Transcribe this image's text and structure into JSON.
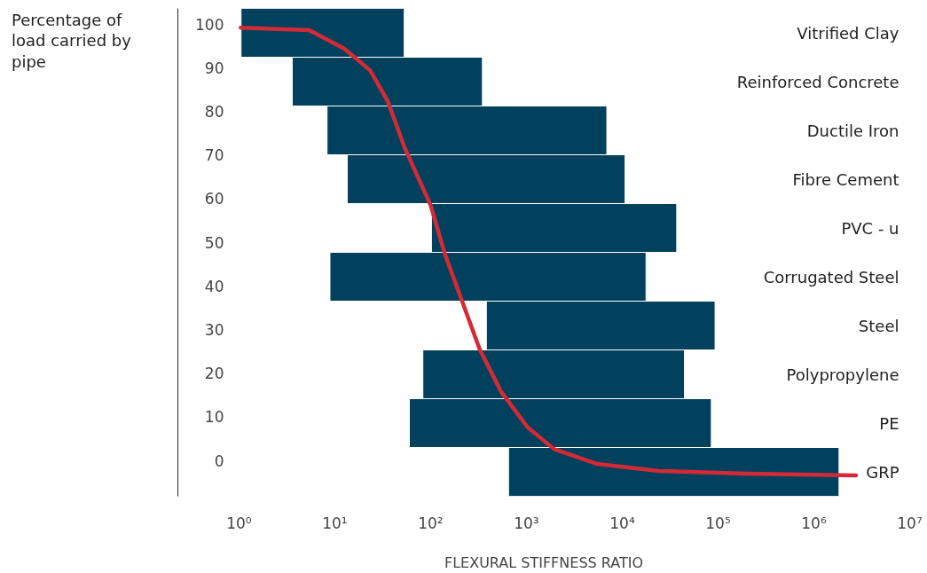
{
  "chart_data": [
    {
      "type": "bar",
      "orientation": "horizontal",
      "log": "x",
      "categories": [
        "Vitrified Clay",
        "Reinforced Concrete",
        "Ductile Iron",
        "Fibre Cement",
        "PVC - u",
        "Corrugated Steel",
        "Steel",
        "Polypropylene",
        "PE",
        "GRP"
      ],
      "xlabel": "FLEXURAL STIFFNESS RATIO",
      "color": "#02415e",
      "xlim": [
        0.23,
        10000000
      ],
      "xticks": [
        {
          "value": 1,
          "label": "10⁰"
        },
        {
          "value": 10,
          "label": "10¹"
        },
        {
          "value": 100,
          "label": "10²"
        },
        {
          "value": 1000,
          "label": "10³"
        },
        {
          "value": 10000,
          "label": "10⁴"
        },
        {
          "value": 100000,
          "label": "10⁵"
        },
        {
          "value": 1000000,
          "label": "10⁶"
        },
        {
          "value": 10000000,
          "label": "10⁷"
        }
      ],
      "base": [
        1.05,
        3.6,
        8.3,
        13.5,
        102,
        8.9,
        382,
        83,
        60,
        650
      ],
      "values": [
        51.95,
        343.4,
        6891.7,
        10686.5,
        36898,
        17691.1,
        92618,
        44417,
        84940,
        1829350
      ]
    },
    {
      "type": "line",
      "log": "x",
      "tick_labels": "y",
      "color": "#d42a35",
      "ylabel": "Percentage of load carried by pipe",
      "xlim": [
        0.23,
        10000000
      ],
      "ylim": [
        -8.2,
        103.6
      ],
      "yticks": [
        0,
        10,
        20,
        30,
        40,
        50,
        60,
        70,
        80,
        90,
        100
      ],
      "x": [
        1.04,
        5.4,
        12.5,
        23.4,
        35.6,
        54,
        100,
        140,
        213,
        325,
        550,
        1030,
        1950,
        5500,
        24000,
        200000,
        2750000
      ],
      "values": [
        99.2,
        98.6,
        94.4,
        89.4,
        82.4,
        71.5,
        58.5,
        47.5,
        36.5,
        25.5,
        15.6,
        7.6,
        2.6,
        -0.8,
        -2.4,
        -3.0,
        -3.4
      ]
    }
  ]
}
